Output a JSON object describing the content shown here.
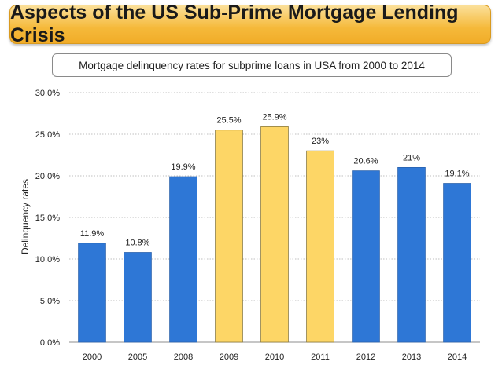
{
  "title": "Aspects of the US Sub-Prime Mortgage Lending Crisis",
  "subtitle": "Mortgage delinquency rates for subprime loans in USA from 2000 to 2014",
  "colors": {
    "blue": "#2e77d6",
    "yellow": "#fdd666",
    "gridline": "#bfbfbf"
  },
  "chart_data": {
    "type": "bar",
    "categories": [
      "2000",
      "2005",
      "2008",
      "2009",
      "2010",
      "2011",
      "2012",
      "2013",
      "2014"
    ],
    "values": [
      11.9,
      10.8,
      19.9,
      25.5,
      25.9,
      23,
      20.6,
      21,
      19.1
    ],
    "data_labels": [
      "11.9%",
      "10.8%",
      "19.9%",
      "25.5%",
      "25.9%",
      "23%",
      "20.6%",
      "21%",
      "19.1%"
    ],
    "bar_colors": [
      "blue",
      "blue",
      "blue",
      "yellow",
      "yellow",
      "yellow",
      "blue",
      "blue",
      "blue"
    ],
    "ylabel": "Delinquency rates",
    "xlabel": "",
    "ylim": [
      0,
      30
    ],
    "yticks": [
      0,
      5,
      10,
      15,
      20,
      25,
      30
    ],
    "ytick_labels": [
      "0.0%",
      "5.0%",
      "10.0%",
      "15.0%",
      "20.0%",
      "25.0%",
      "30.0%"
    ],
    "grid": true,
    "legend": "none"
  }
}
